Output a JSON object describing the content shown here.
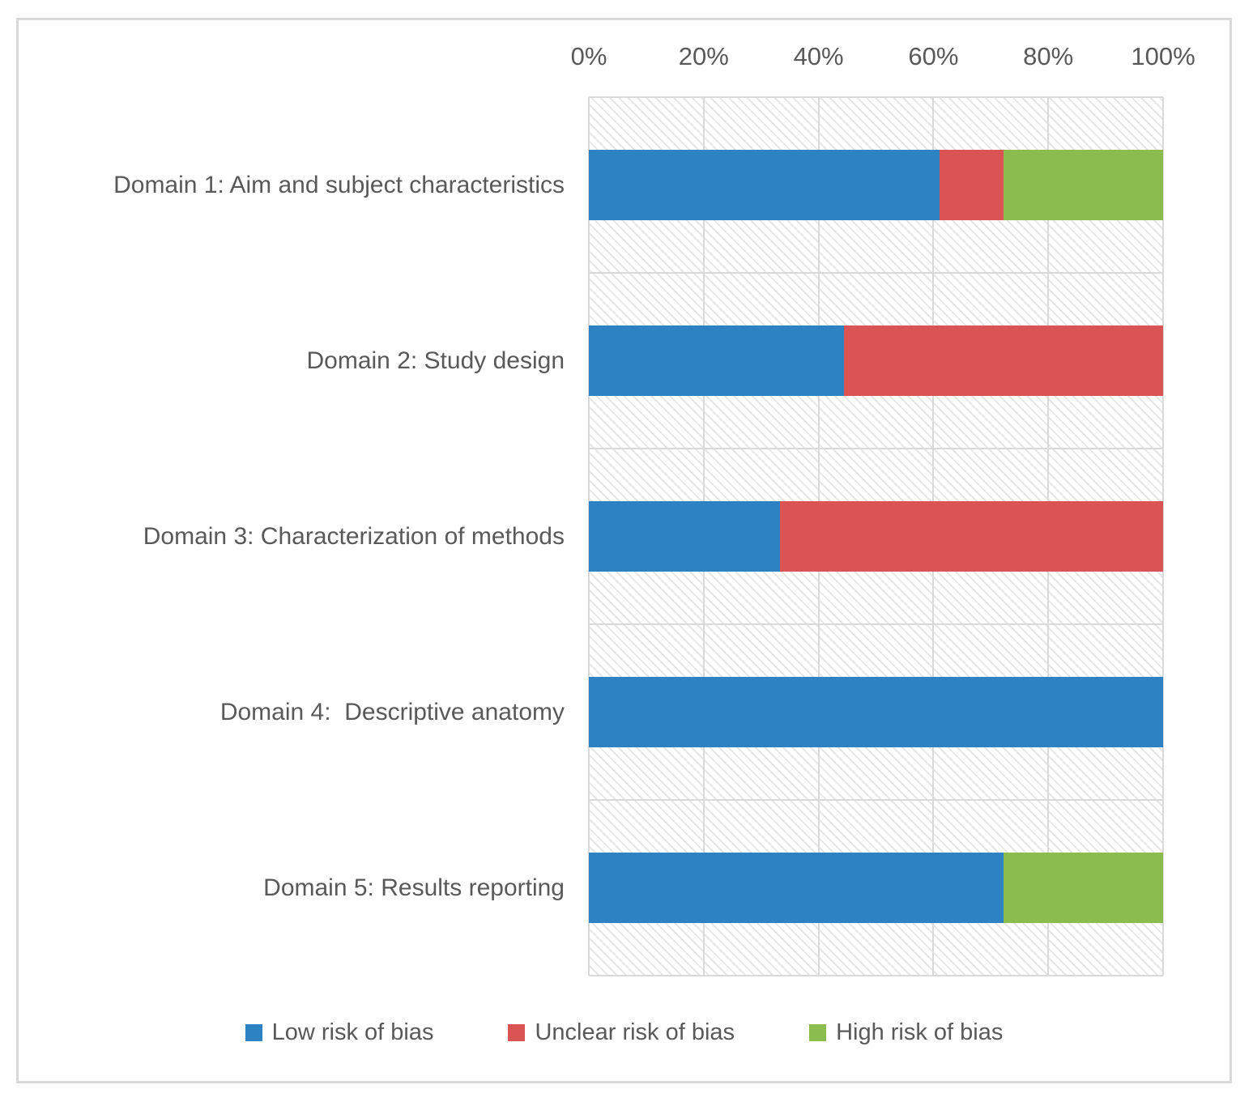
{
  "figure": {
    "background_color": "#ffffff",
    "border_color": "#d9d9d9",
    "text_color": "#595959",
    "gridline_color": "#d9d9d9",
    "hatch_color": "#e6e6e6"
  },
  "chart_data": {
    "type": "bar",
    "orientation": "horizontal",
    "stacked": true,
    "title": "",
    "xlabel": "",
    "ylabel": "",
    "categories": [
      "Domain 1: Aim and subject characteristics",
      "Domain 2: Study design",
      "Domain 3: Characterization of methods",
      "Domain 4:  Descriptive anatomy",
      "Domain 5: Results reporting"
    ],
    "series": [
      {
        "name": "Low risk of bias",
        "color": "#2C82C3",
        "values": [
          61.1,
          44.4,
          33.3,
          100.0,
          72.2
        ]
      },
      {
        "name": "Unclear risk of bias",
        "color": "#D95452",
        "values": [
          11.1,
          55.6,
          66.7,
          0.0,
          0.0
        ]
      },
      {
        "name": "High risk of bias",
        "color": "#8ABD4D",
        "values": [
          27.8,
          0.0,
          0.0,
          0.0,
          27.8
        ]
      }
    ],
    "x_axis": {
      "position": "top",
      "min": 0,
      "max": 100,
      "unit": "%",
      "tick_labels": [
        "0%",
        "20%",
        "40%",
        "60%",
        "80%",
        "100%"
      ]
    },
    "legend": {
      "position": "bottom",
      "entries": [
        "Low risk of bias",
        "Unclear risk of bias",
        "High risk of bias"
      ]
    },
    "grid": true,
    "plot_background": "diagonal-hatch"
  }
}
